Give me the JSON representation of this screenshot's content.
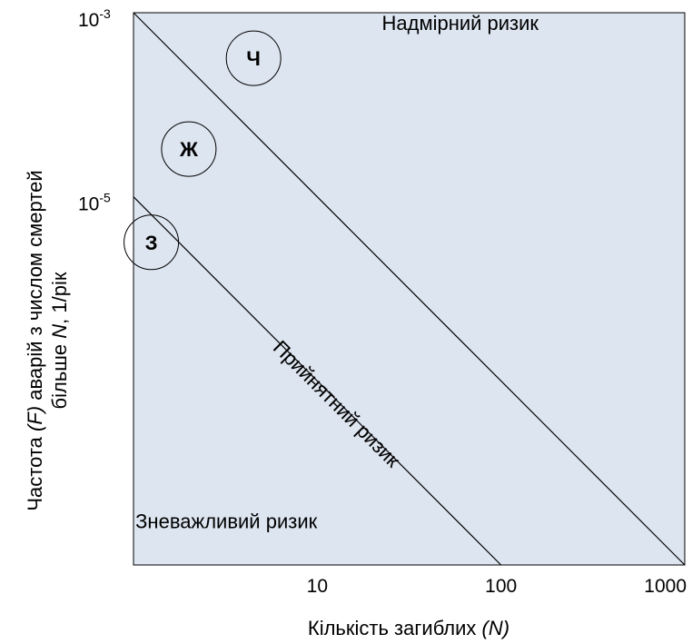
{
  "chart_data": {
    "type": "line",
    "x_scale": "log",
    "y_scale": "log",
    "xlim": [
      1,
      1000
    ],
    "ylim": [
      1e-09,
      0.001
    ],
    "grid": false,
    "legend": "none",
    "x_ticks": [
      {
        "value": 10,
        "label": "10"
      },
      {
        "value": 100,
        "label": "100"
      },
      {
        "value": 1000,
        "label": "1000"
      }
    ],
    "y_ticks": [
      {
        "value": 0.001,
        "base": "10",
        "exp": "-3"
      },
      {
        "value": 1e-05,
        "base": "10",
        "exp": "-5"
      }
    ],
    "xlabel": {
      "prefix": "Кількість загиблих ",
      "italic": "(N)"
    },
    "ylabel": {
      "line1_a": "Частота ",
      "line1_italic": "(F)",
      "line1_b": " аварій з числом смертей",
      "line2_a": "більше ",
      "line2_italic": "N",
      "line2_b": ", 1/рік"
    },
    "series": [
      {
        "x": [
          1,
          1000
        ],
        "y": [
          0.001,
          1e-09
        ]
      },
      {
        "x": [
          1,
          100
        ],
        "y": [
          1e-05,
          1e-09
        ]
      }
    ],
    "regions": [
      {
        "label": "Надмірний ризик",
        "x": 60,
        "y": 0.00065,
        "rotate": 0
      },
      {
        "label": "Прийнятний ризик",
        "x": 12,
        "y": 5e-08,
        "rotate": 45
      },
      {
        "label": "Зневажливий ризик",
        "x": 3.2,
        "y": 2.5e-09,
        "rotate": 0
      }
    ],
    "markers": [
      {
        "label": "Ч",
        "x": 4.5,
        "y": 0.00032
      },
      {
        "label": "Ж",
        "x": 2,
        "y": 3.3e-05
      },
      {
        "label": "З",
        "x": 1.25,
        "y": 3.2e-06
      }
    ],
    "colors": {
      "plot_background": "#dde5f0",
      "line": "#000000",
      "text": "#000000"
    }
  }
}
